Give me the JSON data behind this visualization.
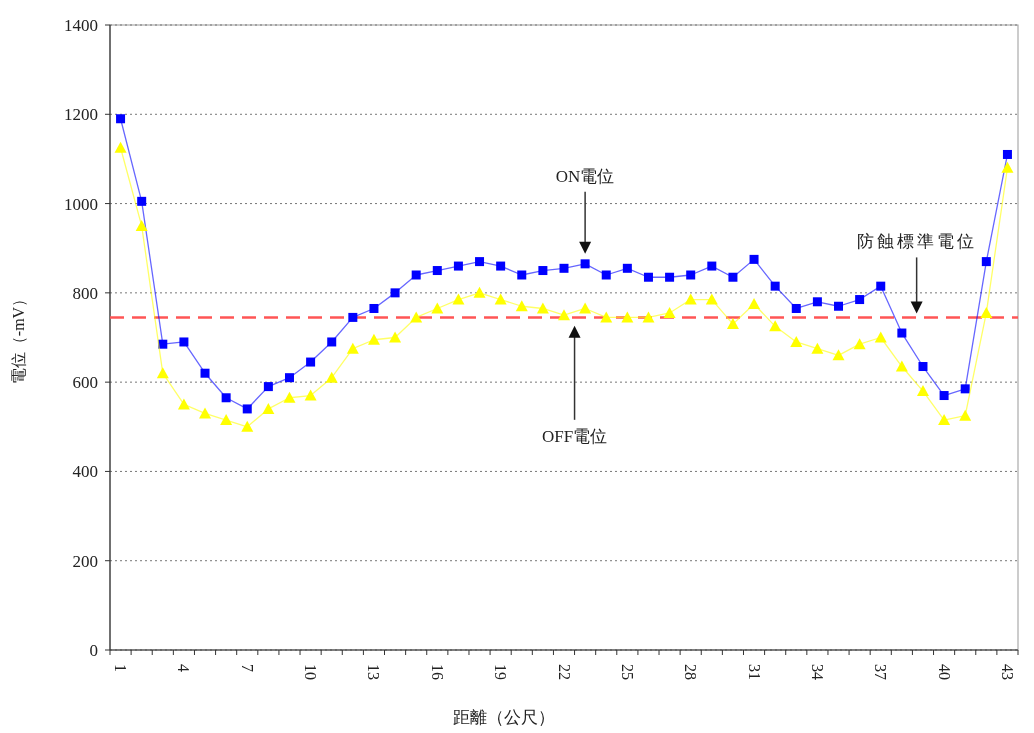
{
  "chart_data": {
    "type": "line",
    "xlabel": "距離（公尺）",
    "ylabel": "電位（-mV）",
    "categories": [
      "1",
      null,
      null,
      "4",
      null,
      null,
      "7",
      null,
      null,
      "10",
      null,
      null,
      "13",
      null,
      null,
      "16",
      null,
      null,
      "19",
      null,
      null,
      "22",
      null,
      null,
      "25",
      null,
      null,
      "28",
      null,
      null,
      "31",
      null,
      null,
      "34",
      null,
      null,
      "37",
      null,
      null,
      "40",
      null,
      null,
      "43"
    ],
    "series": [
      {
        "color": "#0000ff",
        "marker": "square",
        "values": [
          1190,
          1005,
          685,
          690,
          620,
          565,
          540,
          590,
          610,
          645,
          690,
          745,
          765,
          800,
          840,
          850,
          860,
          870,
          860,
          840,
          850,
          855,
          865,
          840,
          855,
          835,
          835,
          840,
          860,
          835,
          875,
          815,
          765,
          780,
          770,
          785,
          815,
          710,
          635,
          570,
          585,
          870,
          1110
        ]
      },
      {
        "color": "#ffff00",
        "marker": "triangle",
        "values": [
          1125,
          950,
          620,
          550,
          530,
          515,
          500,
          540,
          565,
          570,
          610,
          675,
          695,
          700,
          745,
          765,
          785,
          800,
          785,
          770,
          765,
          750,
          765,
          745,
          745,
          745,
          755,
          785,
          785,
          730,
          775,
          725,
          690,
          675,
          660,
          685,
          700,
          635,
          580,
          515,
          525,
          755,
          1080
        ]
      }
    ],
    "ylim": [
      0,
      1400
    ],
    "yticks": [
      0,
      200,
      400,
      600,
      800,
      1000,
      1200,
      1400
    ],
    "grid": "y",
    "line_style": "solid",
    "annotations": [
      "ON電位",
      "OFF電位",
      "防蝕標準電位"
    ],
    "ref_lines": [
      {
        "axis": "y",
        "value": 745,
        "color": "#ff5555",
        "line_style": "dashed"
      }
    ]
  }
}
